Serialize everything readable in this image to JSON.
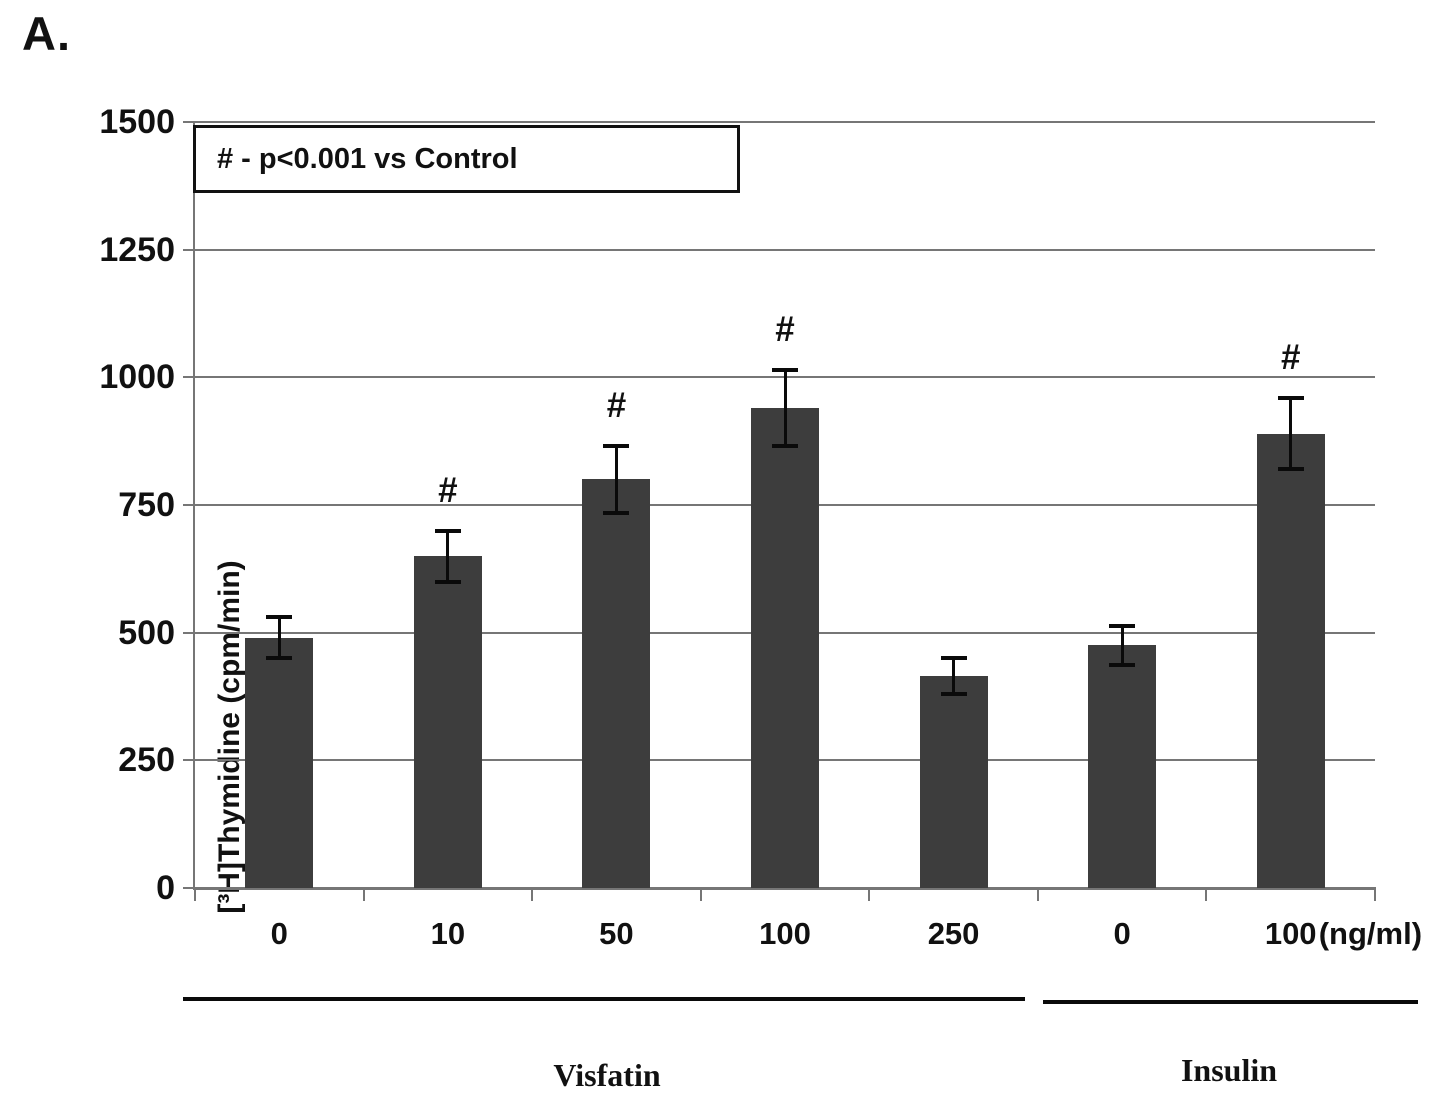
{
  "figure": {
    "panel_label": "A."
  },
  "chart_data": {
    "type": "bar",
    "title": "",
    "ylabel": "[³H]Thymidine (cpm/min)",
    "xlabel": "",
    "ylim": [
      0,
      1500
    ],
    "y_ticks": [
      1500,
      1250,
      1000,
      750,
      500,
      250,
      0
    ],
    "categories": [
      "0",
      "10",
      "50",
      "100",
      "250",
      "0",
      "100"
    ],
    "values": [
      490,
      650,
      800,
      940,
      415,
      475,
      890
    ],
    "errors": [
      40,
      50,
      65,
      75,
      35,
      38,
      70
    ],
    "significance": [
      "",
      "#",
      "#",
      "#",
      "",
      "",
      "#"
    ],
    "groups": [
      {
        "name": "Visfatin",
        "bar_indexes": [
          0,
          1,
          2,
          3,
          4
        ]
      },
      {
        "name": "Insulin",
        "bar_indexes": [
          5,
          6
        ]
      }
    ],
    "x_unit": "(ng/ml)",
    "annotation": "# - p<0.001 vs Control",
    "grid": true,
    "legend_position": "none"
  },
  "colors": {
    "bar": "#3d3d3d",
    "grid": "#767676",
    "axis": "#767676",
    "error_bar": "#0a0a0a",
    "group_line": "#0a0a0a",
    "annotation_border": "#111111",
    "text": "#111111"
  }
}
